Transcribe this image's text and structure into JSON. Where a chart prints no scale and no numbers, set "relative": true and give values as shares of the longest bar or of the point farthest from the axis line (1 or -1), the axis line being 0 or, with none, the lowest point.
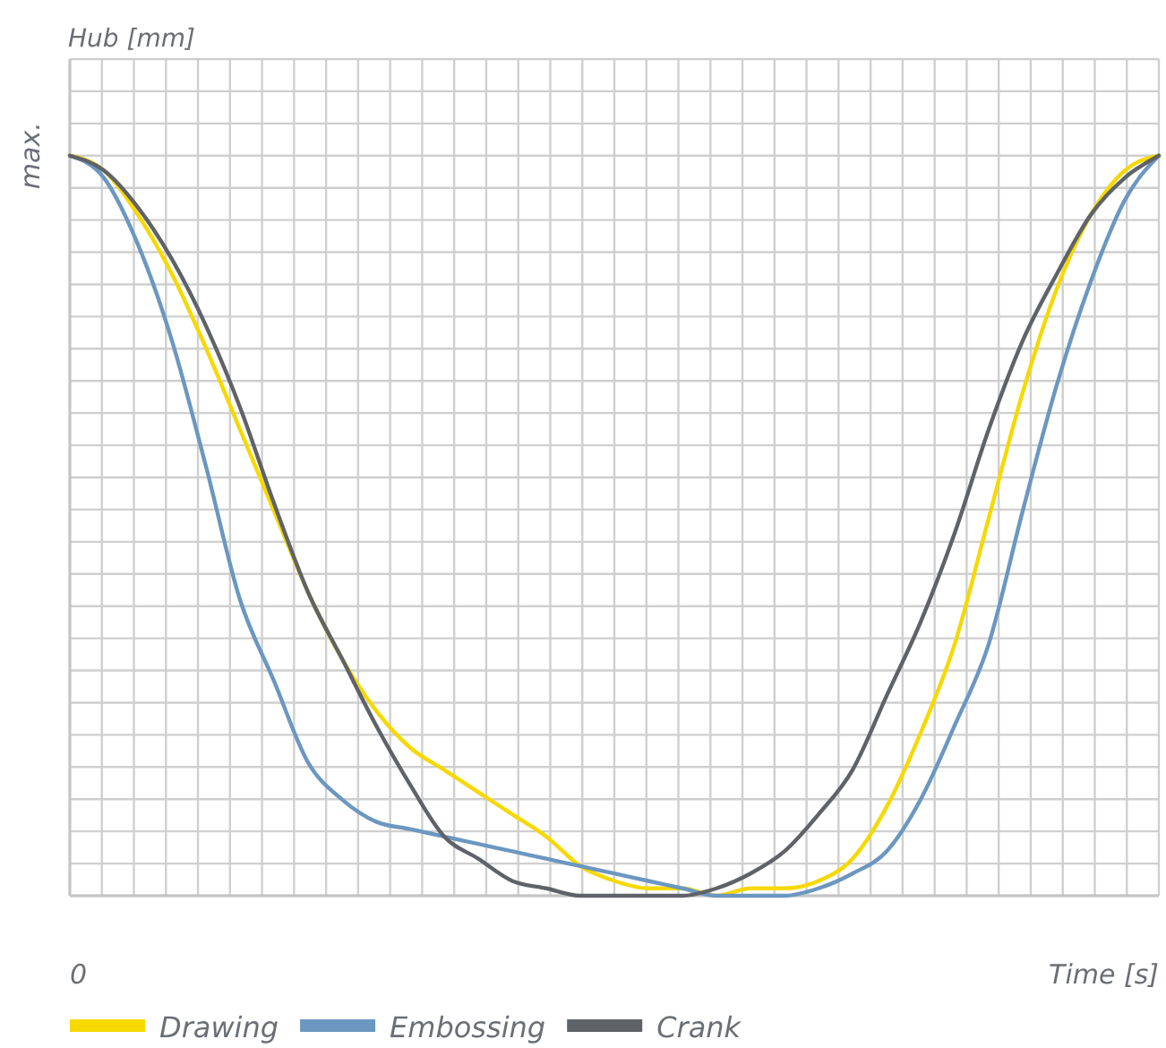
{
  "chart_data": {
    "type": "line",
    "relative": true,
    "ylabel": "Hub [mm]",
    "xlabel": "Time [s]",
    "annotations": [
      "max.",
      "0"
    ],
    "grid": true,
    "legend": "bottom",
    "categories": [
      null,
      null,
      null,
      null,
      null,
      null,
      null,
      null,
      null,
      null,
      null,
      null,
      null,
      null,
      null,
      null,
      null,
      null,
      null,
      null,
      null,
      null,
      null,
      null,
      null,
      null,
      null,
      null,
      null,
      null,
      null,
      null,
      null
    ],
    "series": [
      {
        "name": "Drawing",
        "color": "#f7d800",
        "values": [
          1,
          0.98,
          0.92,
          0.84,
          0.74,
          0.63,
          0.52,
          0.41,
          0.32,
          0.25,
          0.2,
          0.17,
          0.14,
          0.11,
          0.08,
          0.04,
          0.02,
          0.01,
          0.01,
          0,
          0.01,
          0.01,
          0.02,
          0.05,
          0.12,
          0.22,
          0.34,
          0.51,
          0.68,
          0.82,
          0.92,
          0.98,
          1
        ]
      },
      {
        "name": "Embossing",
        "color": "#6b97c0",
        "values": [
          1,
          0.97,
          0.88,
          0.75,
          0.58,
          0.4,
          0.29,
          0.18,
          0.13,
          0.1,
          0.09,
          0.08,
          0.07,
          0.06,
          0.05,
          0.04,
          0.03,
          0.02,
          0.01,
          0,
          0,
          0,
          0.01,
          0.03,
          0.06,
          0.13,
          0.23,
          0.34,
          0.52,
          0.69,
          0.83,
          0.94,
          1
        ]
      },
      {
        "name": "Crank",
        "color": "#5f6368",
        "values": [
          1,
          0.98,
          0.93,
          0.86,
          0.77,
          0.66,
          0.53,
          0.41,
          0.32,
          0.23,
          0.15,
          0.08,
          0.05,
          0.02,
          0.01,
          0,
          0,
          0,
          0,
          0.01,
          0.03,
          0.06,
          0.11,
          0.17,
          0.27,
          0.37,
          0.49,
          0.63,
          0.75,
          0.84,
          0.92,
          0.97,
          1
        ]
      }
    ]
  }
}
